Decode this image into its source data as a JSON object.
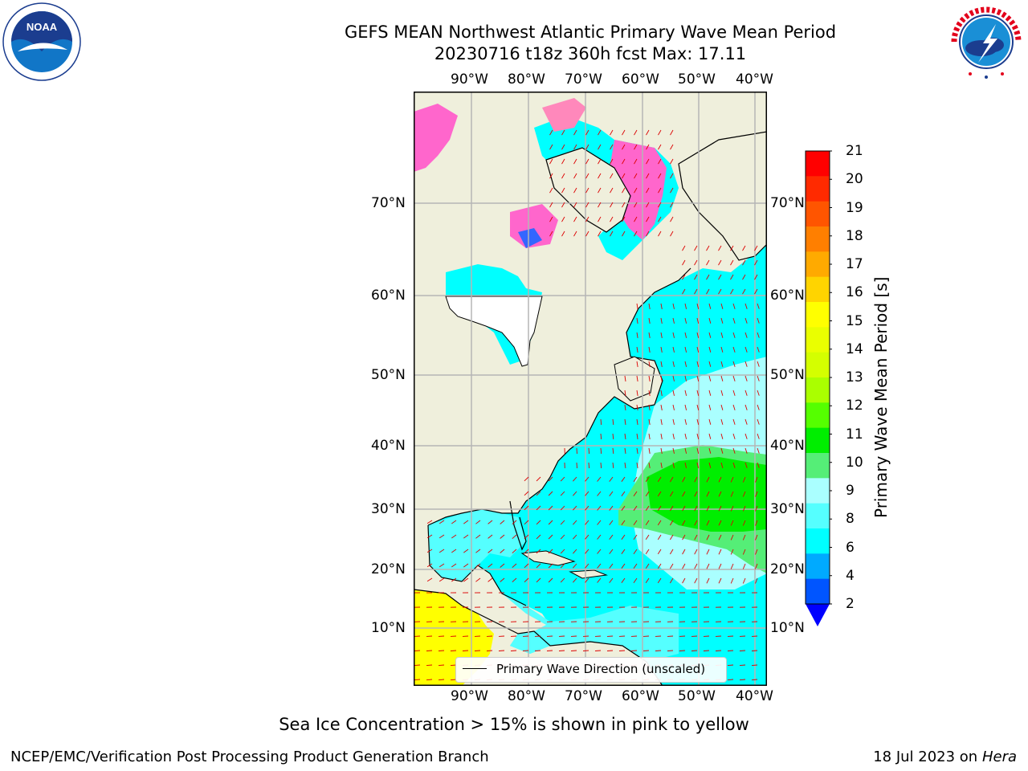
{
  "title_line1": "GEFS MEAN Northwest Atlantic Primary Wave Mean Period",
  "title_line2": "20230716 t18z 360h fcst   Max: 17.11",
  "lon_labels": [
    "90°W",
    "80°W",
    "70°W",
    "60°W",
    "50°W",
    "40°W"
  ],
  "lat_labels": [
    "70°N",
    "60°N",
    "50°N",
    "40°N",
    "30°N",
    "20°N",
    "10°N"
  ],
  "colorbar": {
    "title": "Primary Wave Mean Period [s]",
    "tick_labels": [
      "21",
      "20",
      "19",
      "18",
      "17",
      "16",
      "15",
      "14",
      "13",
      "12",
      "11",
      "10",
      "9",
      "8",
      "6",
      "4",
      "2"
    ],
    "colors": [
      "#ff0000",
      "#ff2a00",
      "#ff5500",
      "#ff7f00",
      "#ffaa00",
      "#ffd400",
      "#ffff00",
      "#eaff00",
      "#d4ff00",
      "#aaff00",
      "#55ff00",
      "#00ee00",
      "#55ee77",
      "#aaffff",
      "#55ffff",
      "#00ffff",
      "#00aaff",
      "#0055ff"
    ],
    "under_color": "#0000ff"
  },
  "legend_label": "Primary Wave Direction (unscaled)",
  "note": "Sea Ice Concentration > 15% is shown in pink to yellow",
  "credit": "NCEP/EMC/Verification Post Processing Product Generation Branch",
  "date": "18 Jul 2023 on",
  "date_machine": "Hera",
  "logos": {
    "noaa_text": "NOAA",
    "noaa_ring": "NATIONAL OCEANIC AND ATMOSPHERIC ADMINISTRATION · U.S. DEPARTMENT OF COMMERCE",
    "nws_ring": "NATIONAL WEATHER SERVICE"
  },
  "colors": {
    "land": "#efefdc",
    "water_base": "#00ffff",
    "water_mid": "#55ffff",
    "water_light": "#aaffff",
    "arrow": "#dd0000"
  }
}
